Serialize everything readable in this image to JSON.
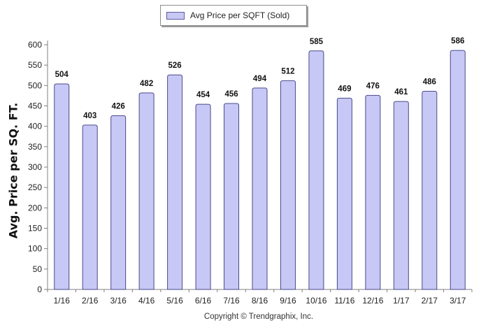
{
  "chart_data": {
    "type": "bar",
    "categories": [
      "1/16",
      "2/16",
      "3/16",
      "4/16",
      "5/16",
      "6/16",
      "7/16",
      "8/16",
      "9/16",
      "10/16",
      "11/16",
      "12/16",
      "1/17",
      "2/17",
      "3/17"
    ],
    "series": [
      {
        "name": "Avg Price per SQFT (Sold)",
        "values": [
          504,
          403,
          426,
          482,
          526,
          454,
          456,
          494,
          512,
          585,
          469,
          476,
          461,
          486,
          586
        ]
      }
    ],
    "title": "",
    "xlabel": "",
    "ylabel": "Avg. Price per SQ. FT.",
    "ylim": [
      0,
      600
    ],
    "yticks": [
      0,
      50,
      100,
      150,
      200,
      250,
      300,
      350,
      400,
      450,
      500,
      550,
      600
    ],
    "grid": false,
    "legend_position": "top-center",
    "data_labels": true,
    "colors": {
      "bar_fill": "#c8c8f6",
      "bar_stroke": "#4a4a8a",
      "axis": "#808080"
    }
  },
  "legend": {
    "label": "Avg Price per SQFT (Sold)"
  },
  "footer": {
    "copyright": "Copyright © Trendgraphix, Inc."
  }
}
